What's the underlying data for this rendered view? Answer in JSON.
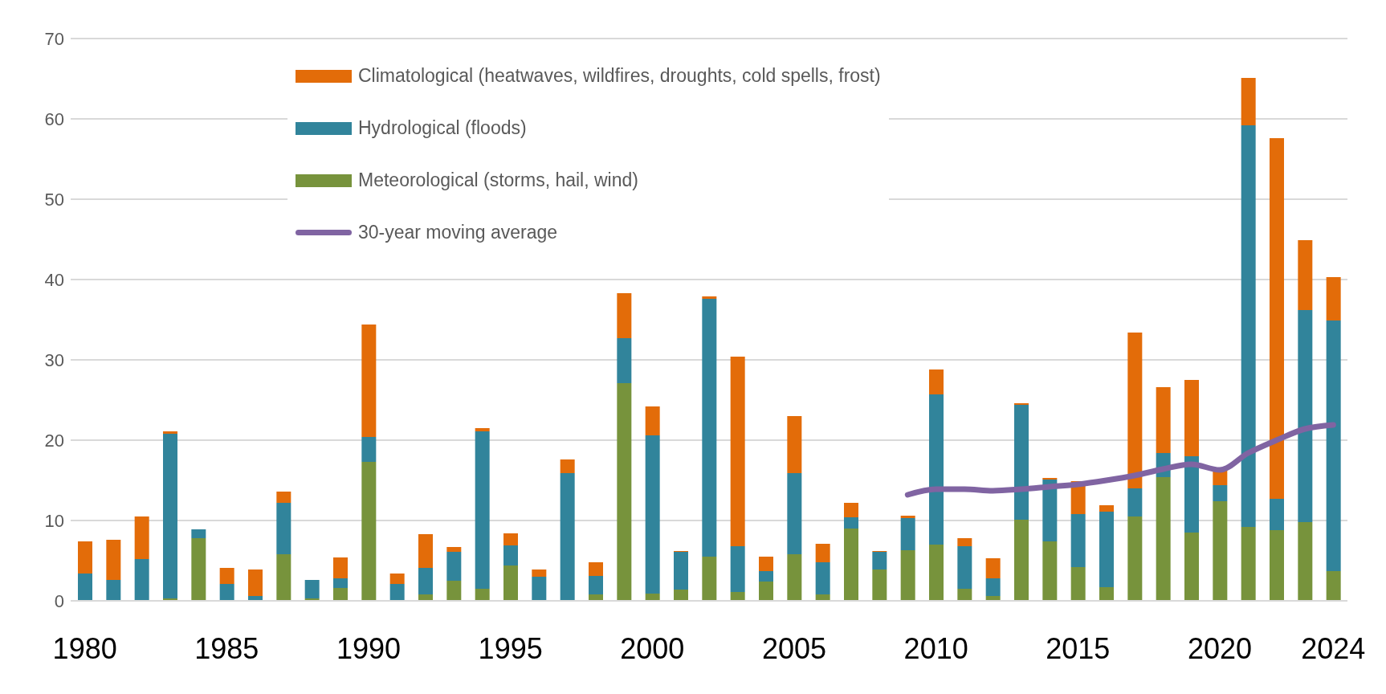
{
  "chart_data": {
    "type": "bar",
    "stacked": true,
    "categories": [
      "1980",
      null,
      null,
      null,
      null,
      "1985",
      null,
      null,
      null,
      null,
      "1990",
      null,
      null,
      null,
      null,
      "1995",
      null,
      null,
      null,
      null,
      "2000",
      null,
      null,
      null,
      null,
      "2005",
      null,
      null,
      null,
      null,
      "2010",
      null,
      null,
      null,
      null,
      "2015",
      null,
      null,
      null,
      null,
      "2020",
      null,
      null,
      null,
      "2024"
    ],
    "series": [
      {
        "name": "Meteorological (storms, hail, wind)",
        "color": "#77933c",
        "values": [
          0,
          0,
          0,
          0.3,
          7.8,
          0,
          0,
          5.8,
          0.3,
          1.6,
          17.3,
          0,
          0.8,
          2.5,
          1.5,
          4.4,
          0,
          null,
          0.8,
          27.1,
          0.9,
          1.4,
          5.5,
          1.1,
          2.4,
          5.8,
          0.8,
          9.0,
          3.9,
          6.3,
          7.0,
          1.5,
          0.6,
          10.1,
          7.4,
          4.2,
          1.7,
          10.5,
          15.4,
          8.5,
          12.4,
          9.2,
          8.8,
          9.8,
          3.7
        ]
      },
      {
        "name": "Hydrological (floods)",
        "color": "#31849b",
        "values": [
          3.4,
          2.6,
          5.2,
          20.5,
          1.1,
          2.1,
          0.6,
          6.4,
          2.3,
          1.2,
          3.1,
          2.1,
          3.3,
          3.6,
          19.6,
          2.5,
          3.0,
          15.9,
          2.3,
          5.6,
          19.7,
          4.7,
          32.1,
          5.7,
          1.3,
          10.1,
          4.0,
          1.4,
          2.2,
          4.0,
          18.7,
          5.3,
          2.2,
          14.3,
          7.7,
          6.6,
          9.4,
          3.5,
          3.0,
          9.5,
          2.0,
          50.0,
          3.9,
          26.4,
          31.2
        ]
      },
      {
        "name": "Climatological (heatwaves, wildfires, droughts, cold spells, frost)",
        "color": "#e36c09",
        "values": [
          4.0,
          5.0,
          5.3,
          0.3,
          0,
          2.0,
          3.3,
          1.4,
          0,
          2.6,
          14.0,
          1.3,
          4.2,
          0.6,
          0.4,
          1.5,
          0.9,
          1.7,
          1.7,
          5.6,
          3.6,
          0.1,
          0.3,
          23.6,
          1.8,
          7.1,
          2.3,
          1.8,
          0.1,
          0.3,
          3.1,
          1.0,
          2.5,
          0.2,
          0.2,
          4.1,
          0.8,
          19.4,
          8.2,
          9.5,
          1.8,
          5.9,
          44.9,
          8.7,
          5.4
        ]
      },
      {
        "name": "30-year moving average",
        "type": "line",
        "color": "#8064a2",
        "values": [
          null,
          null,
          null,
          null,
          null,
          null,
          null,
          null,
          null,
          null,
          null,
          null,
          null,
          null,
          null,
          null,
          null,
          null,
          null,
          null,
          null,
          null,
          null,
          null,
          null,
          null,
          null,
          null,
          null,
          13.2,
          13.9,
          13.9,
          13.7,
          13.9,
          14.2,
          14.5,
          15.0,
          15.6,
          16.4,
          17.0,
          16.3,
          18.4,
          20.0,
          21.4,
          21.9
        ]
      }
    ],
    "ylim": [
      0,
      70
    ],
    "yticks": [
      0,
      10,
      20,
      30,
      40,
      50,
      60,
      70
    ],
    "grid": "y",
    "legend": "top left",
    "marker": "none",
    "line_style": "solid"
  }
}
